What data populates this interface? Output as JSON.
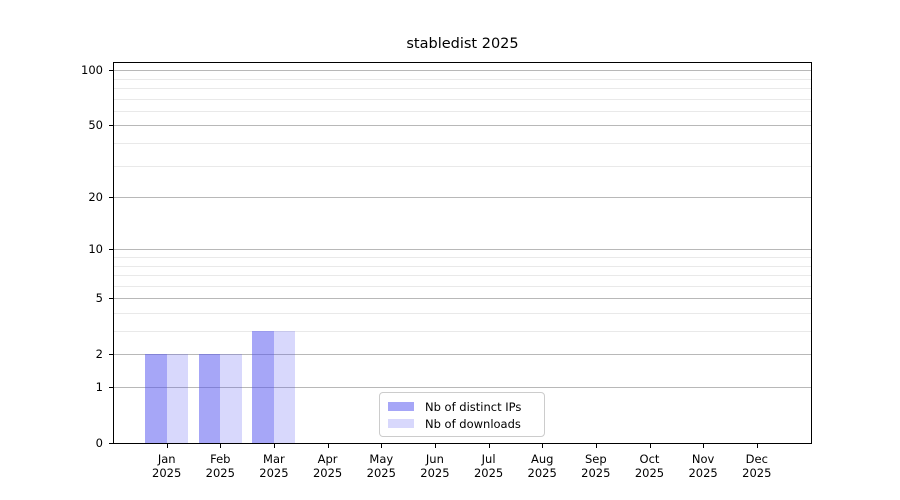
{
  "chart_data": {
    "type": "bar",
    "title": "stabledist 2025",
    "categories": [
      "Jan 2025",
      "Feb 2025",
      "Mar 2025",
      "Apr 2025",
      "May 2025",
      "Jun 2025",
      "Jul 2025",
      "Aug 2025",
      "Sep 2025",
      "Oct 2025",
      "Nov 2025",
      "Dec 2025"
    ],
    "series": [
      {
        "name": "Nb of distinct IPs",
        "color": "#4d4df0",
        "alpha": 0.5,
        "values": [
          2,
          2,
          3,
          0,
          0,
          0,
          0,
          0,
          0,
          0,
          0,
          0
        ]
      },
      {
        "name": "Nb of downloads",
        "color": "#4d4df0",
        "alpha": 0.22,
        "values": [
          2,
          2,
          3,
          0,
          0,
          0,
          0,
          0,
          0,
          0,
          0,
          0
        ]
      }
    ],
    "xlabel": "",
    "ylabel": "",
    "yscale": "log1p",
    "ylim": [
      0,
      112
    ],
    "y_major_ticks": [
      0,
      1,
      2,
      5,
      10,
      20,
      50,
      100
    ],
    "y_minor_gridlines": [
      3,
      4,
      6,
      7,
      8,
      9,
      30,
      40,
      60,
      70,
      80,
      90
    ],
    "grid": {
      "major_color": "#b8b8b8",
      "minor_color": "#e9e9e9",
      "visible": true
    },
    "legend": {
      "position": "lower center"
    }
  }
}
